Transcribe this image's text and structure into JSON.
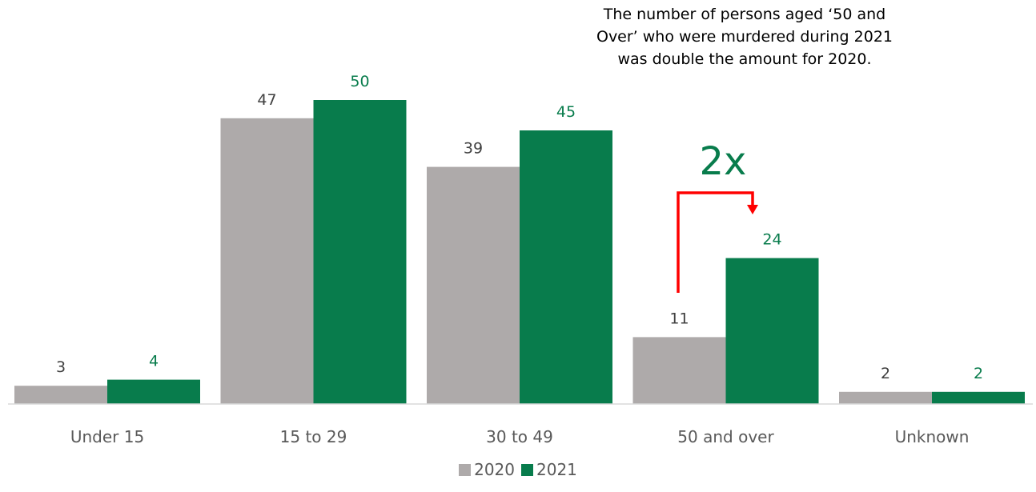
{
  "chart_data": {
    "type": "bar",
    "categories": [
      "Under 15",
      "15 to 29",
      "30 to 49",
      "50 and over",
      "Unknown"
    ],
    "series": [
      {
        "name": "2020",
        "values": [
          3,
          47,
          39,
          11,
          2
        ],
        "color": "#aeaaaa"
      },
      {
        "name": "2021",
        "values": [
          4,
          50,
          45,
          24,
          2
        ],
        "color": "#087c4c"
      }
    ],
    "ylim": [
      0,
      50
    ],
    "grid": false,
    "legend_position": "bottom-center",
    "data_labels": true,
    "axis_color": "#d9d9d9",
    "label_colors": {
      "2020": "#404040",
      "2021": "#087c4c"
    },
    "annotation": {
      "text": "The number of persons aged ‘50 and Over’ who were murdered during 2021 was double the amount for 2020.",
      "multiplier": "2x",
      "arrow_color": "#ff0000"
    }
  }
}
